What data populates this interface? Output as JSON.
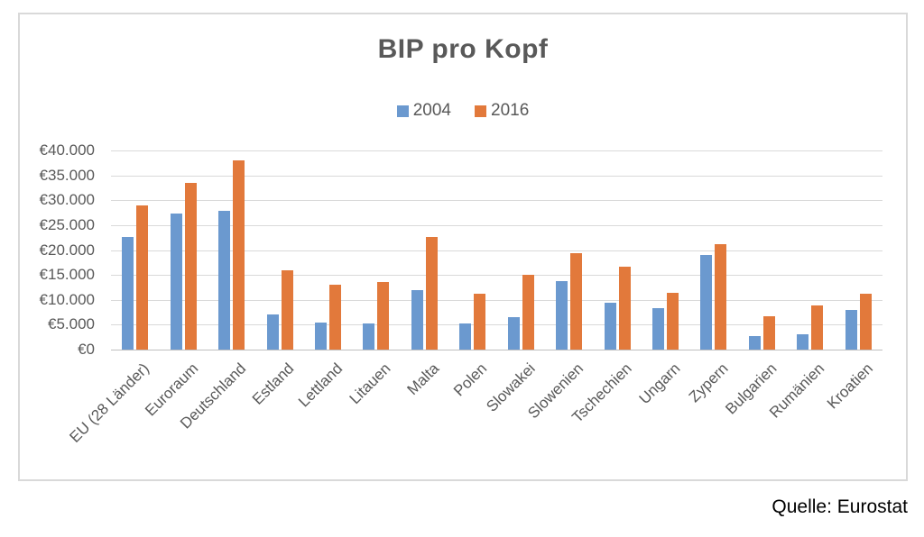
{
  "page": {
    "source_note": "Quelle: Eurostat"
  },
  "chart_data": {
    "type": "bar",
    "title": "BIP pro Kopf",
    "legend_position": "top-center",
    "grid": true,
    "categories": [
      "EU (28 Länder)",
      "Euroraum",
      "Deutschland",
      "Estland",
      "Lettland",
      "Litauen",
      "Malta",
      "Polen",
      "Slowakei",
      "Slowenien",
      "Tschechien",
      "Ungarn",
      "Zypern",
      "Bulgarien",
      "Rumänien",
      "Kroatien"
    ],
    "series": [
      {
        "name": "2004",
        "color": "#6B99CF",
        "values": [
          22700,
          27300,
          27800,
          7100,
          5400,
          5300,
          12000,
          5300,
          6600,
          13800,
          9400,
          8400,
          19000,
          2700,
          3100,
          7900
        ]
      },
      {
        "name": "2016",
        "color": "#E2793B",
        "values": [
          29000,
          33500,
          38000,
          16000,
          13000,
          13600,
          22700,
          11200,
          15000,
          19300,
          16600,
          11400,
          21200,
          6700,
          8800,
          11300
        ]
      }
    ],
    "y_axis": {
      "min": 0,
      "max": 40000,
      "step": 5000,
      "tick_labels": [
        "€0",
        "€5.000",
        "€10.000",
        "€15.000",
        "€20.000",
        "€25.000",
        "€30.000",
        "€35.000",
        "€40.000"
      ]
    }
  }
}
